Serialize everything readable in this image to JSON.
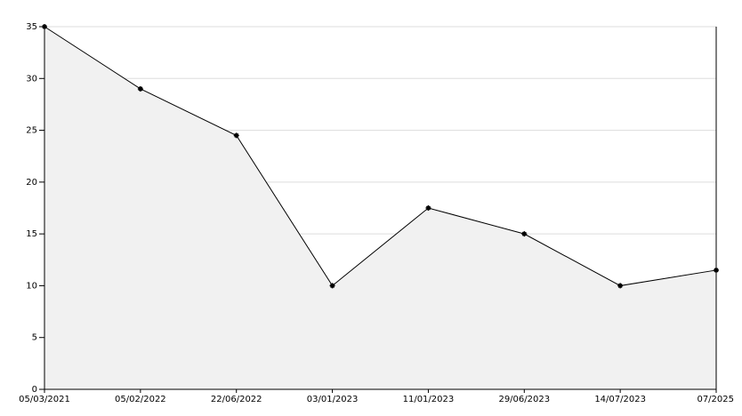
{
  "chart_data": {
    "type": "area",
    "categories": [
      "05/03/2021",
      "05/02/2022",
      "22/06/2022",
      "03/01/2023",
      "11/01/2023",
      "29/06/2023",
      "14/07/2023",
      "07/2025"
    ],
    "values": [
      35,
      29,
      24.5,
      10,
      17.5,
      15,
      10,
      11.5
    ],
    "color": "#000000",
    "fill": "#f1f1f1",
    "ylim": [
      0,
      35
    ],
    "yticks": [
      0,
      5,
      10,
      15,
      20,
      25,
      30,
      35
    ],
    "grid": true
  }
}
